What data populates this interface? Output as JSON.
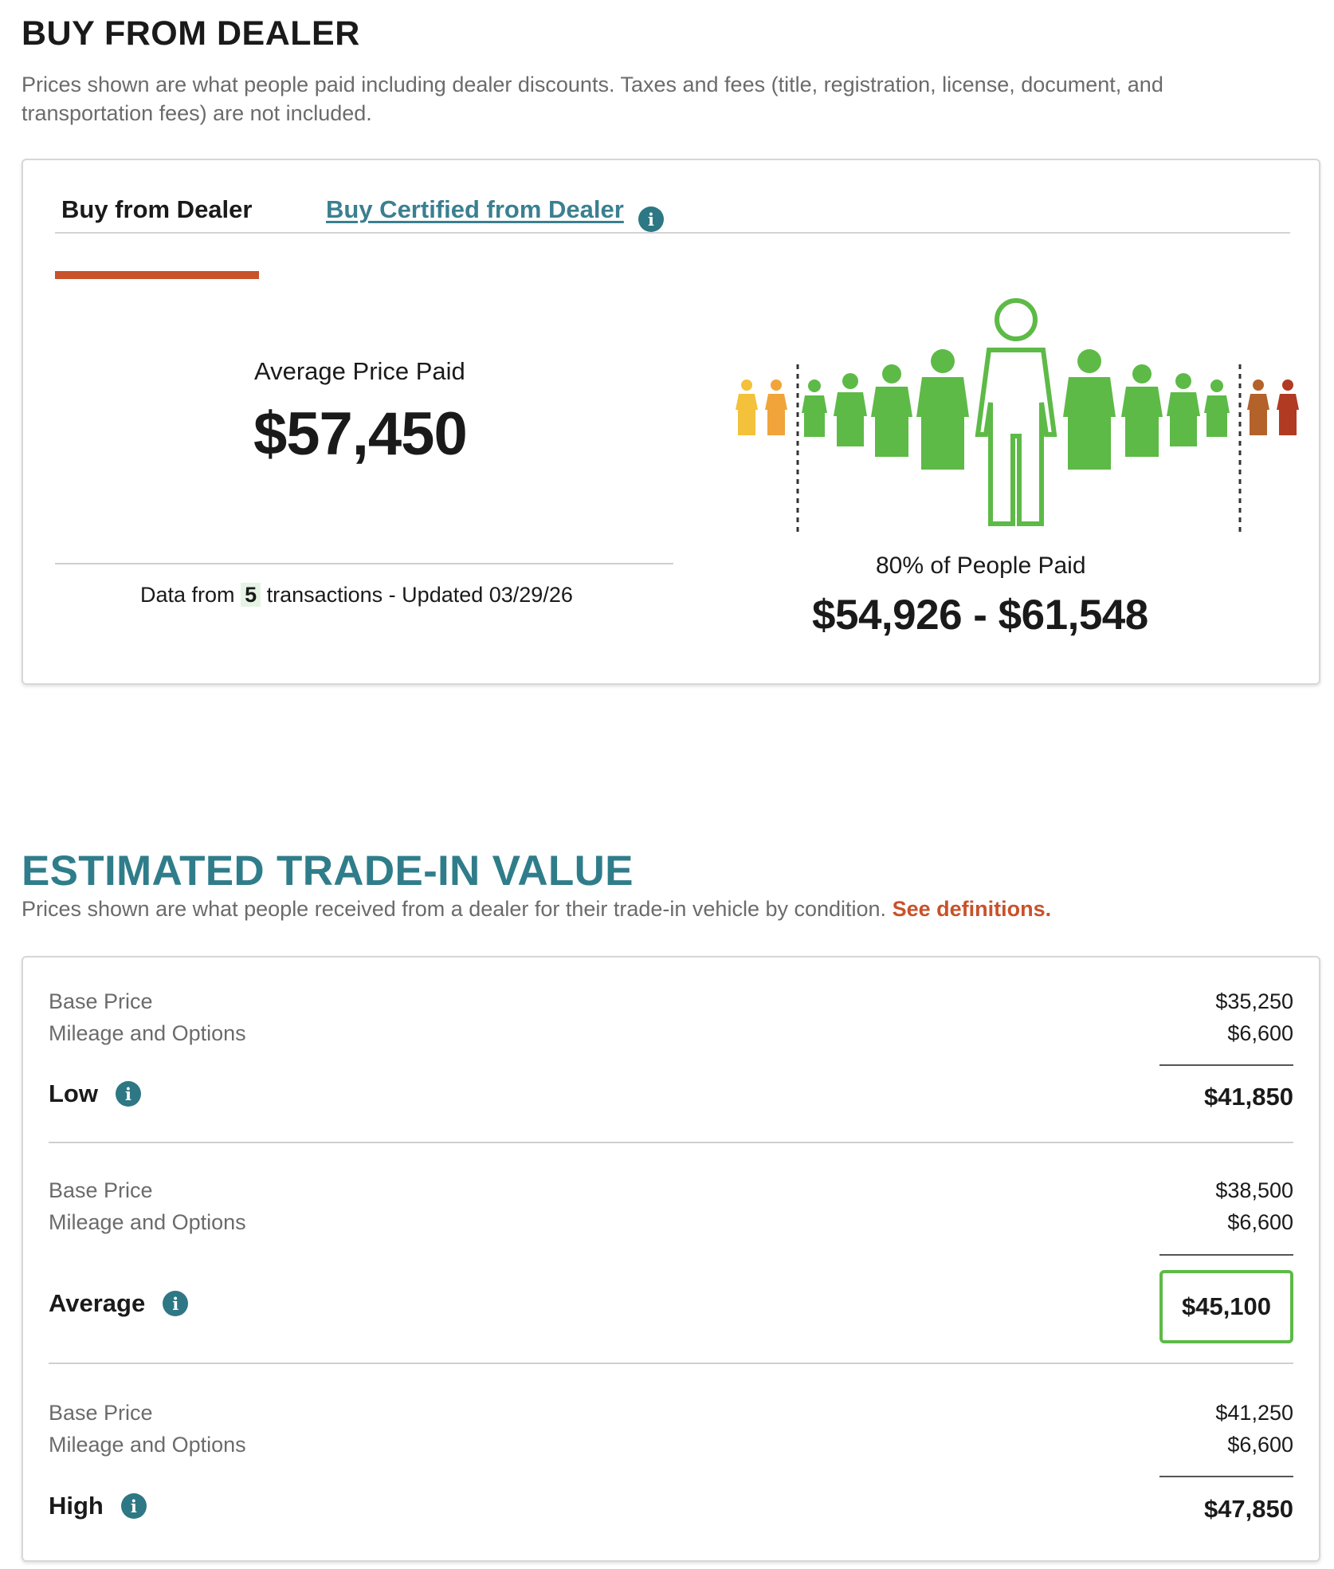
{
  "dealer": {
    "title": "BUY FROM DEALER",
    "subtitle": "Prices shown are what people paid including dealer discounts. Taxes and fees (title, registration, license, document, and transportation fees) are not included.",
    "tabs": [
      {
        "label": "Buy from Dealer",
        "active": true
      },
      {
        "label": "Buy Certified from Dealer",
        "active": false
      }
    ],
    "average_label": "Average Price Paid",
    "average_value": "$57,450",
    "data_from_prefix": "Data from",
    "transactions_count": "5",
    "data_from_suffix": "transactions - Updated 03/29/26",
    "percent_label": "80% of People Paid",
    "range_value": "$54,926 - $61,548",
    "figure_colors": {
      "low": "#f3c13a",
      "low2": "#f0a43a",
      "mid": "#5dba47",
      "high": "#b3622a",
      "high2": "#b13a23",
      "accent": "#c8522a",
      "link": "#3a8090"
    }
  },
  "tradein": {
    "title": "ESTIMATED TRADE-IN VALUE",
    "subtitle": "Prices shown are what people received from a dealer for their trade-in vehicle by condition.",
    "definitions_link": "See definitions.",
    "rows": [
      {
        "base_label": "Base Price",
        "base_value": "$35,250",
        "mileage_label": "Mileage and Options",
        "mileage_value": "$6,600",
        "total_label": "Low",
        "total_value": "$41,850",
        "highlighted": false
      },
      {
        "base_label": "Base Price",
        "base_value": "$38,500",
        "mileage_label": "Mileage and Options",
        "mileage_value": "$6,600",
        "total_label": "Average",
        "total_value": "$45,100",
        "highlighted": true
      },
      {
        "base_label": "Base Price",
        "base_value": "$41,250",
        "mileage_label": "Mileage and Options",
        "mileage_value": "$6,600",
        "total_label": "High",
        "total_value": "$47,850",
        "highlighted": false
      }
    ]
  }
}
